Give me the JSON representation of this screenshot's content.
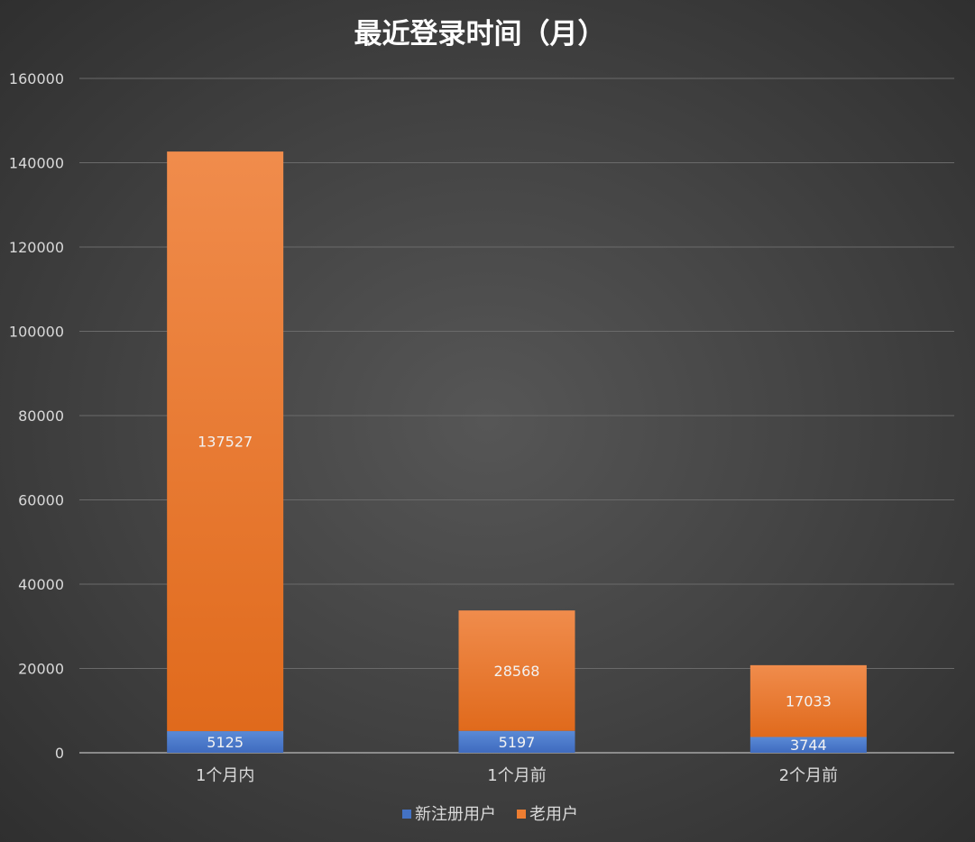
{
  "chart_data": {
    "type": "bar",
    "stacked": true,
    "title": "最近登录时间（月）",
    "categories": [
      "1个月内",
      "1个月前",
      "2个月前"
    ],
    "series": [
      {
        "name": "新注册用户",
        "color": "#4472c4",
        "values": [
          5125,
          5197,
          3744
        ]
      },
      {
        "name": "老用户",
        "color": "#ed7d31",
        "values": [
          137527,
          28568,
          17033
        ]
      }
    ],
    "ylim": [
      0,
      160000
    ],
    "yticks": [
      0,
      20000,
      40000,
      60000,
      80000,
      100000,
      120000,
      140000,
      160000
    ],
    "grid": true,
    "legend": "bottom",
    "xlabel": "",
    "ylabel": ""
  }
}
